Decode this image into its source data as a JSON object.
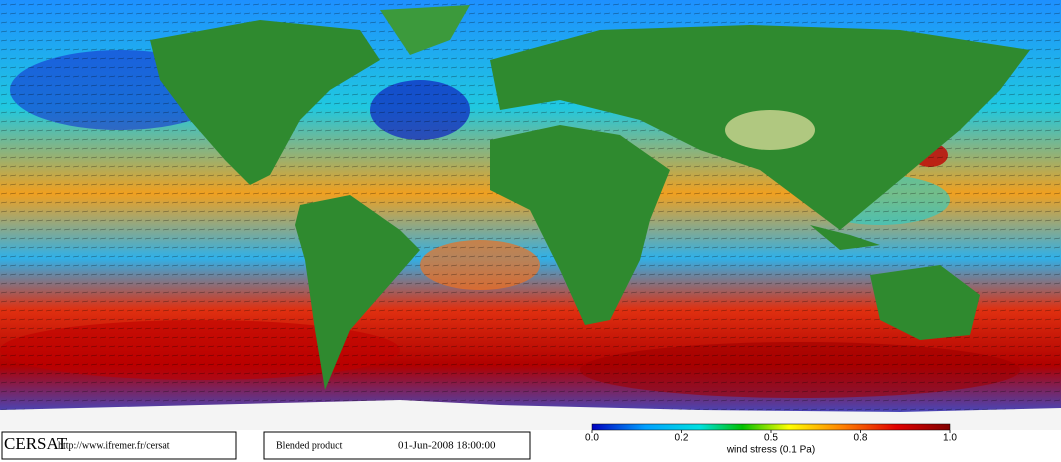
{
  "footer": {
    "brand": "CERSAT",
    "url": "http://www.ifremer.fr/cersat",
    "product": "Blended product",
    "datetime": "01-Jun-2008 18:00:00"
  },
  "colorbar": {
    "label": "wind stress (0.1 Pa)",
    "ticks": [
      {
        "value": 0,
        "label": "0.0"
      },
      0.2,
      0.5,
      0.8,
      {
        "value": 1,
        "label": "1.0"
      }
    ]
  }
}
